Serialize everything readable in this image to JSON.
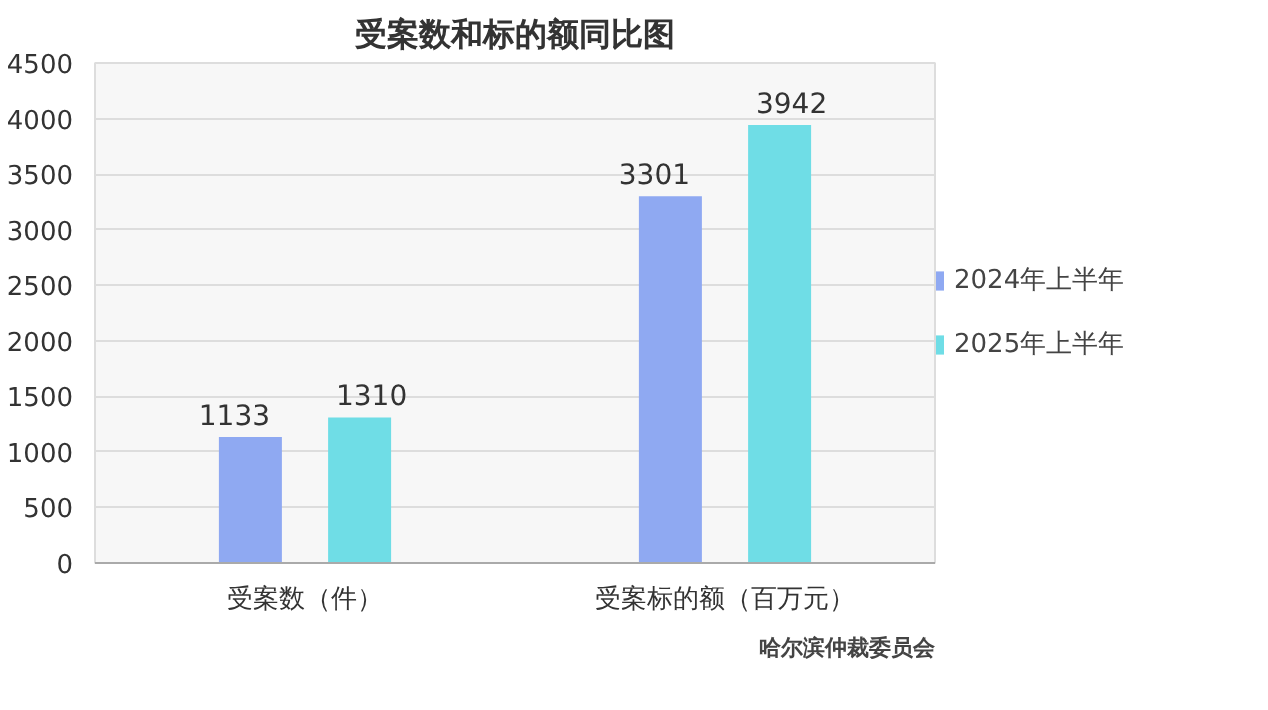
{
  "chart_data": {
    "type": "bar",
    "title": "受案数和标的额同比图",
    "categories": [
      "受案数（件）",
      "受案标的额（百万元）"
    ],
    "series": [
      {
        "name": "2024年上半年",
        "color": "#8fa9f2",
        "values": [
          1133,
          3301
        ]
      },
      {
        "name": "2025年上半年",
        "color": "#6fdde6",
        "values": [
          1310,
          3942
        ]
      }
    ],
    "ylim": [
      0,
      4500
    ],
    "yticks": [
      0,
      500,
      1000,
      1500,
      2000,
      2500,
      3000,
      3500,
      4000,
      4500
    ],
    "grid": "y",
    "legend": "right",
    "data_labels": true,
    "annotations": [
      "哈尔滨仲裁委员会"
    ]
  }
}
